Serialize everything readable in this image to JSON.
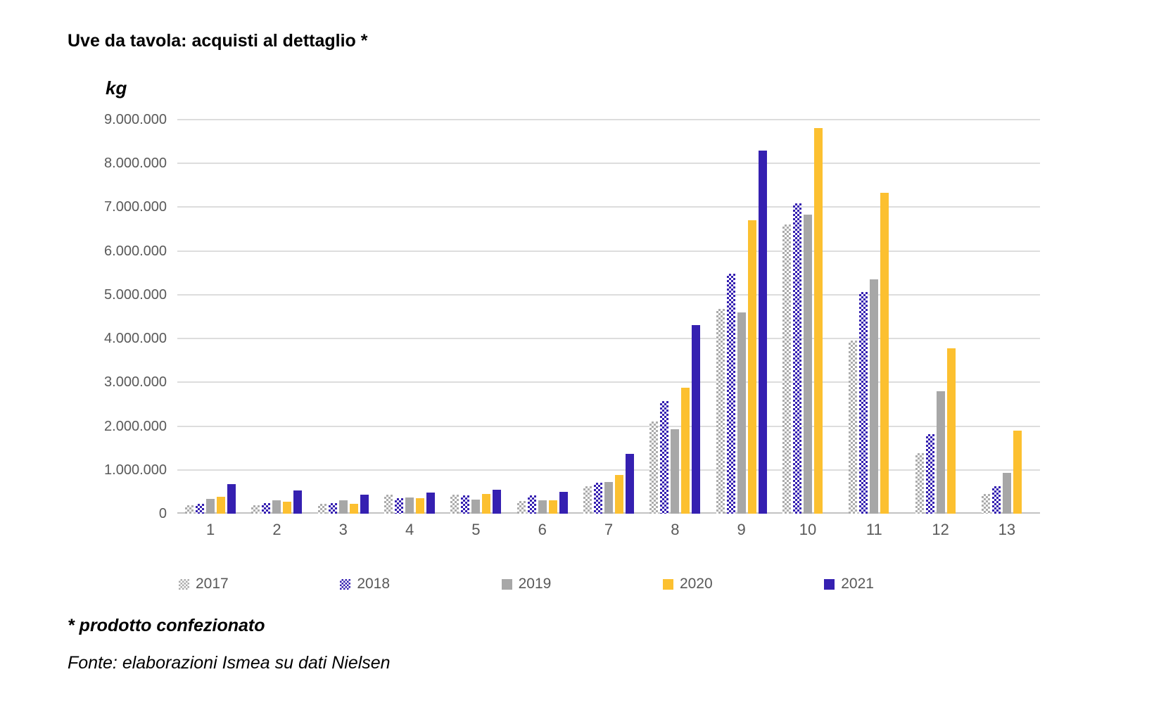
{
  "title": "Uve da tavola: acquisti al dettaglio *",
  "unit_label": "kg",
  "footnotes": {
    "note": "* prodotto confezionato",
    "source": "Fonte: elaborazioni Ismea su dati Nielsen"
  },
  "colors": {
    "accent_blue": "#3520b1",
    "accent_yellow": "#fcc030",
    "gray": "#a7a7a7",
    "gridline": "#dddddd",
    "axis_text": "#595959"
  },
  "chart_data": {
    "type": "bar",
    "title": "Uve da tavola: acquisti al dettaglio *",
    "xlabel": "",
    "ylabel": "kg",
    "ylim": [
      0,
      9000000
    ],
    "grid": true,
    "legend_position": "bottom",
    "categories": [
      "1",
      "2",
      "3",
      "4",
      "5",
      "6",
      "7",
      "8",
      "9",
      "10",
      "11",
      "12",
      "13"
    ],
    "y_tick_labels": [
      "0",
      "1.000.000",
      "2.000.000",
      "3.000.000",
      "4.000.000",
      "5.000.000",
      "6.000.000",
      "7.000.000",
      "8.000.000",
      "9.000.000"
    ],
    "series": [
      {
        "name": "2017",
        "style": "pattern-gray",
        "values": [
          190000,
          200000,
          220000,
          430000,
          440000,
          290000,
          620000,
          2100000,
          4670000,
          6600000,
          3950000,
          1380000,
          450000
        ]
      },
      {
        "name": "2018",
        "style": "pattern-blue",
        "values": [
          230000,
          240000,
          240000,
          360000,
          410000,
          420000,
          700000,
          2570000,
          5480000,
          7080000,
          5060000,
          1820000,
          630000
        ]
      },
      {
        "name": "2019",
        "style": "solid-gray",
        "values": [
          340000,
          310000,
          300000,
          370000,
          320000,
          310000,
          720000,
          1930000,
          4600000,
          6830000,
          5350000,
          2800000,
          930000
        ]
      },
      {
        "name": "2020",
        "style": "solid-yellow",
        "values": [
          380000,
          280000,
          230000,
          350000,
          450000,
          300000,
          890000,
          2880000,
          6700000,
          8800000,
          7330000,
          3780000,
          1900000
        ]
      },
      {
        "name": "2021",
        "style": "solid-blue",
        "values": [
          670000,
          530000,
          440000,
          490000,
          540000,
          500000,
          1360000,
          4300000,
          8300000,
          null,
          null,
          null,
          null
        ]
      }
    ]
  }
}
